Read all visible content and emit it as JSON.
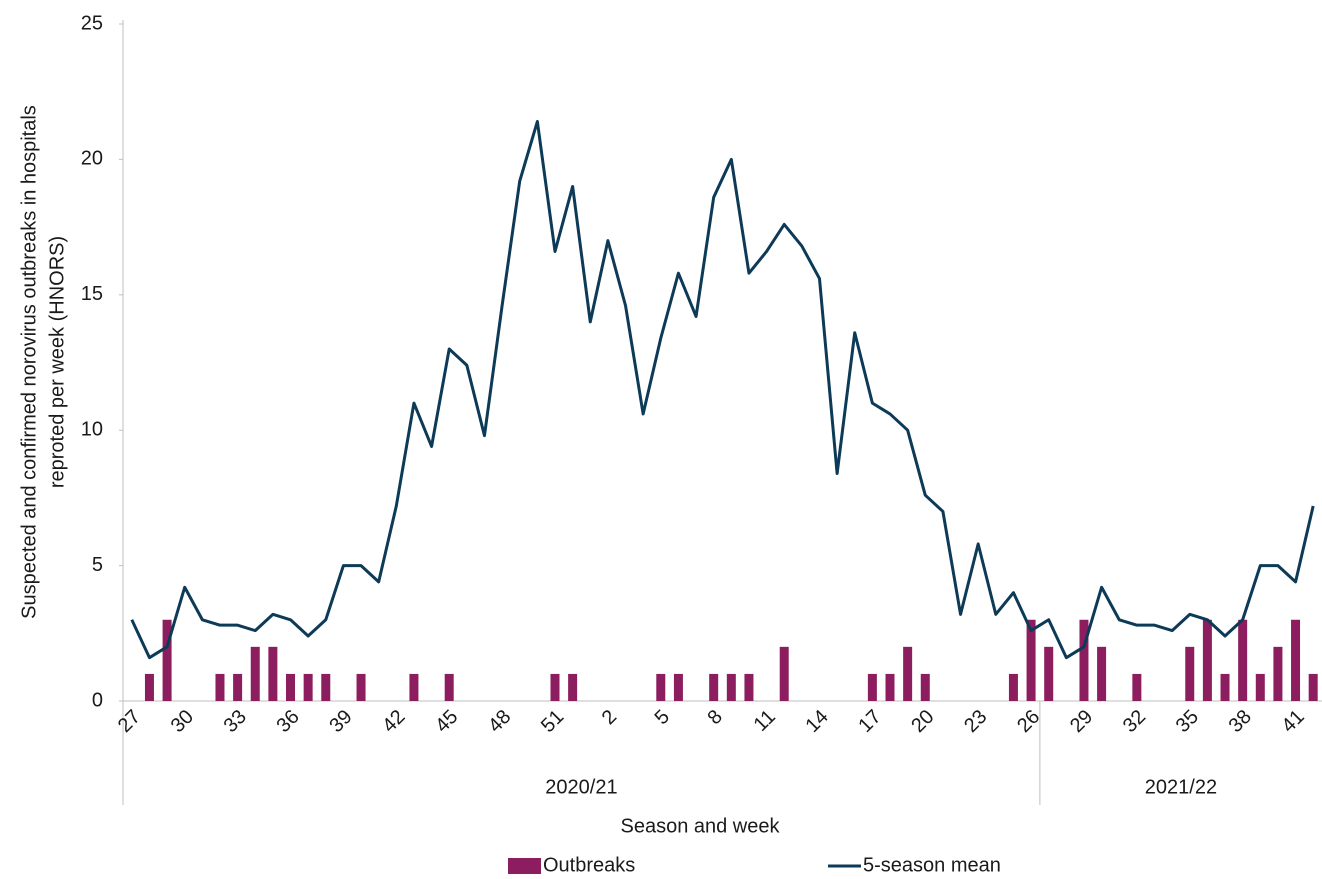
{
  "chart_data": {
    "type": "bar",
    "y_label": [
      "Suspected and confirmed norovirus outbreaks in hospitals",
      "reproted per week (HNORS)"
    ],
    "x_label": "Season and week",
    "categories": [
      "27",
      null,
      null,
      "30",
      null,
      null,
      "33",
      null,
      null,
      "36",
      null,
      null,
      "39",
      null,
      null,
      "42",
      null,
      null,
      "45",
      null,
      null,
      "48",
      null,
      null,
      "51",
      null,
      null,
      "2",
      null,
      null,
      "5",
      null,
      null,
      "8",
      null,
      null,
      "11",
      null,
      null,
      "14",
      null,
      null,
      "17",
      null,
      null,
      "20",
      null,
      null,
      "23",
      null,
      null,
      "26",
      null,
      null,
      "29",
      null,
      null,
      "32",
      null,
      null,
      "35",
      null,
      null,
      "38",
      null,
      null,
      "41",
      null
    ],
    "groups": [
      {
        "label": "2020/21",
        "count": 52
      },
      {
        "label": "2021/22",
        "count": 16
      }
    ],
    "series": [
      {
        "name": "Outbreaks",
        "type": "bar",
        "color": "#8c1d5f",
        "values": [
          0,
          1,
          3,
          0,
          0,
          1,
          1,
          2,
          2,
          1,
          1,
          1,
          0,
          1,
          0,
          0,
          1,
          0,
          1,
          0,
          0,
          0,
          0,
          0,
          1,
          1,
          0,
          0,
          0,
          0,
          1,
          1,
          0,
          1,
          1,
          1,
          0,
          2,
          0,
          0,
          0,
          0,
          1,
          1,
          2,
          1,
          0,
          0,
          0,
          0,
          1,
          3,
          2,
          0,
          3,
          2,
          0,
          1,
          0,
          0,
          2,
          3,
          1,
          3,
          1,
          2,
          3,
          1
        ]
      },
      {
        "name": "5-season mean",
        "type": "line",
        "color": "#0d3a57",
        "values": [
          3.0,
          1.6,
          2.0,
          4.2,
          3.0,
          2.8,
          2.8,
          2.6,
          3.2,
          3.0,
          2.4,
          3.0,
          5.0,
          5.0,
          4.4,
          7.2,
          11.0,
          9.4,
          13.0,
          12.4,
          9.8,
          14.6,
          19.2,
          21.4,
          16.6,
          19.0,
          14.0,
          17.0,
          14.6,
          10.6,
          13.4,
          15.8,
          14.2,
          18.6,
          20.0,
          15.8,
          16.6,
          17.6,
          16.8,
          15.6,
          8.4,
          13.6,
          11.0,
          10.6,
          10.0,
          7.6,
          7.0,
          3.2,
          5.8,
          3.2,
          4.0,
          2.6,
          3.0,
          1.6,
          2.0,
          4.2,
          3.0,
          2.8,
          2.8,
          2.6,
          3.2,
          3.0,
          2.4,
          3.0,
          5.0,
          5.0,
          4.4,
          7.2
        ]
      }
    ],
    "ylim": [
      0,
      25
    ],
    "yticks": [
      0,
      5,
      10,
      15,
      20,
      25
    ],
    "grid": false,
    "legend": "bottom"
  }
}
